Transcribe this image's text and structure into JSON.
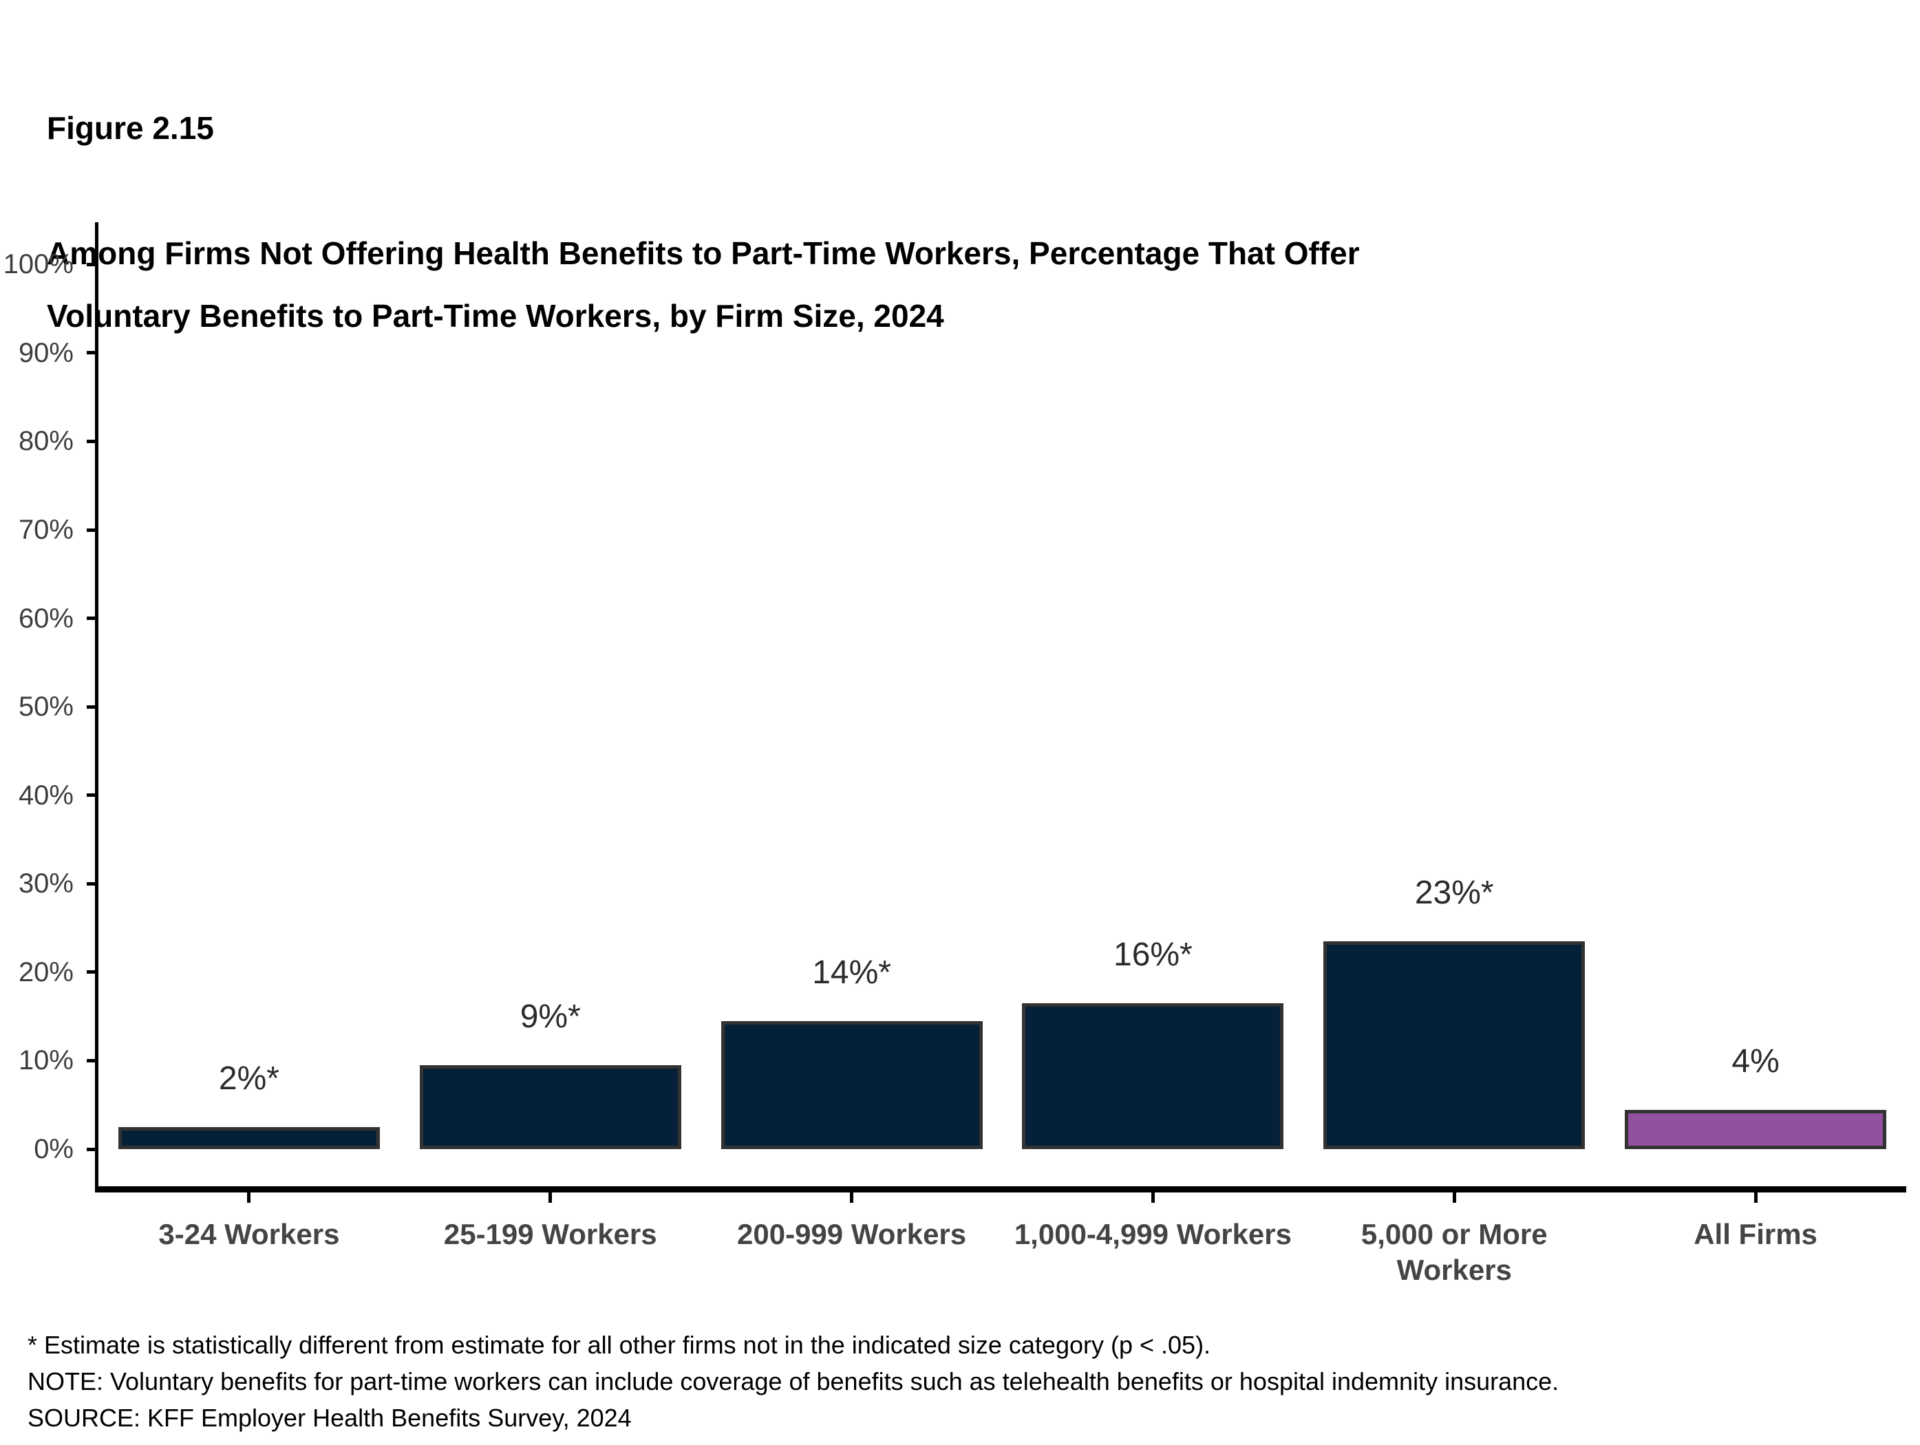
{
  "header": {
    "figure_label": "Figure 2.15",
    "title": "Among Firms Not Offering Health Benefits to Part-Time Workers, Percentage That Offer\nVoluntary Benefits to Part-Time Workers, by Firm Size, 2024"
  },
  "chart_data": {
    "type": "bar",
    "title": "Among Firms Not Offering Health Benefits to Part-Time Workers, Percentage That Offer Voluntary Benefits to Part-Time Workers, by Firm Size, 2024",
    "categories": [
      "3-24 Workers",
      "25-199 Workers",
      "200-999 Workers",
      "1,000-4,999 Workers",
      "5,000 or More Workers",
      "All Firms"
    ],
    "values": [
      2,
      9,
      14,
      16,
      23,
      4
    ],
    "bar_labels": [
      "2%*",
      "9%*",
      "14%*",
      "16%*",
      "23%*",
      "4%"
    ],
    "bar_colors": [
      "#052139",
      "#052139",
      "#052139",
      "#052139",
      "#052139",
      "#92519E"
    ],
    "bar_border_color": "#333333",
    "xlabel": "",
    "ylabel": "",
    "y_axis": {
      "min": 0,
      "max": 100,
      "step": 10
    },
    "y_ticks": [
      "0%",
      "10%",
      "20%",
      "30%",
      "40%",
      "50%",
      "60%",
      "70%",
      "80%",
      "90%",
      "100%"
    ],
    "grid": false,
    "legend": "none"
  },
  "footnotes": {
    "asterisk": "* Estimate is statistically different from estimate for all other firms not in the indicated size category (p < .05).",
    "note": "NOTE: Voluntary benefits for part-time workers can include coverage of benefits such as telehealth benefits or hospital indemnity insurance.",
    "source": "SOURCE: KFF Employer Health Benefits Survey, 2024"
  }
}
